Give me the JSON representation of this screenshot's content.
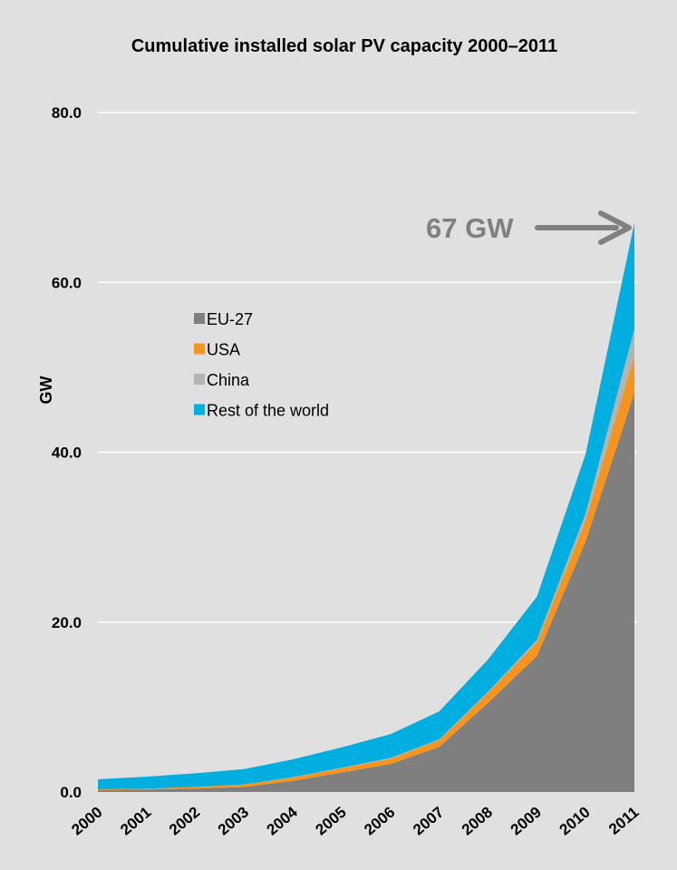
{
  "chart_data": {
    "type": "area",
    "stacked": true,
    "title": "Cumulative installed solar PV capacity 2000–2011",
    "ylabel": "GW",
    "xlabel": "",
    "ylim": [
      0,
      80
    ],
    "yticks": [
      "0.0",
      "20.0",
      "40.0",
      "60.0",
      "80.0"
    ],
    "ytick_values": [
      0,
      20,
      40,
      60,
      80
    ],
    "grid": true,
    "legend_position": "center-left",
    "categories": [
      "2000",
      "2001",
      "2002",
      "2003",
      "2004",
      "2005",
      "2006",
      "2007",
      "2008",
      "2009",
      "2010",
      "2011"
    ],
    "series": [
      {
        "name": "EU-27",
        "color": "#7f7f7f",
        "values": [
          0.2,
          0.3,
          0.4,
          0.6,
          1.3,
          2.3,
          3.3,
          5.3,
          10.5,
          16.0,
          29.5,
          47.0
        ]
      },
      {
        "name": "USA",
        "color": "#f7941d",
        "values": [
          0.1,
          0.1,
          0.2,
          0.3,
          0.4,
          0.5,
          0.6,
          0.8,
          1.2,
          1.6,
          2.5,
          4.4
        ]
      },
      {
        "name": "China",
        "color": "#b3b3b3",
        "values": [
          0.0,
          0.0,
          0.0,
          0.0,
          0.05,
          0.05,
          0.1,
          0.1,
          0.1,
          0.3,
          0.8,
          3.1
        ]
      },
      {
        "name": "Rest of the world",
        "color": "#00aee0",
        "values": [
          1.2,
          1.4,
          1.6,
          1.8,
          2.1,
          2.4,
          2.8,
          3.3,
          3.8,
          5.1,
          7.0,
          12.5
        ]
      }
    ],
    "annotation": {
      "text": "67 GW",
      "color": "#808080",
      "points_to": "2011"
    }
  }
}
